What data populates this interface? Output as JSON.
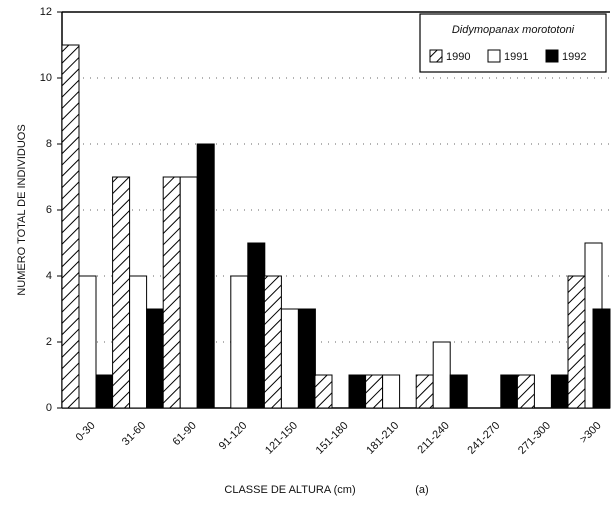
{
  "chart_data": {
    "type": "bar",
    "legend_title": "Didymopanax morototoni",
    "xlabel": "CLASSE DE ALTURA (cm)",
    "ylabel": "NUMERO TOTAL DE INDIVIDUOS",
    "annotation": "(a)",
    "categories": [
      "0-30",
      "31-60",
      "61-90",
      "91-120",
      "121-150",
      "151-180",
      "181-210",
      "211-240",
      "241-270",
      "271-300",
      ">300"
    ],
    "series": [
      {
        "name": "1990",
        "color": "#ffffff",
        "hatch": true,
        "values": [
          11,
          7,
          7,
          0,
          4,
          1,
          1,
          1,
          0,
          1,
          4
        ]
      },
      {
        "name": "1991",
        "color": "#ffffff",
        "hatch": false,
        "values": [
          4,
          4,
          7,
          4,
          3,
          0,
          1,
          2,
          0,
          0,
          5
        ]
      },
      {
        "name": "1992",
        "color": "#000000",
        "hatch": false,
        "values": [
          1,
          3,
          8,
          5,
          3,
          1,
          0,
          1,
          1,
          1,
          3
        ]
      }
    ],
    "ylim": [
      0,
      12
    ],
    "yticks": [
      0,
      2,
      4,
      6,
      8,
      10,
      12
    ],
    "grid": true,
    "legend": "upper right"
  }
}
